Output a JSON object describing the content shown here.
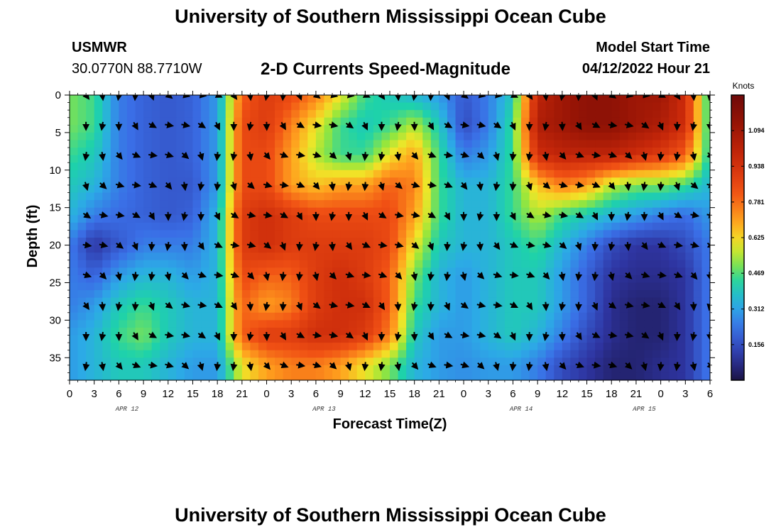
{
  "header": {
    "title": "University of Southern Mississippi Ocean Cube",
    "station": "USMWR",
    "coords": "30.0770N  88.7710W",
    "subtitle": "2-D Currents Speed-Magnitude",
    "model_start_label": "Model Start Time",
    "model_start_value": "04/12/2022 Hour 21",
    "second_title": "University of Southern Mississippi Ocean Cube"
  },
  "chart_data": {
    "type": "heatmap",
    "xlabel": "Forecast Time(Z)",
    "ylabel": "Depth (ft)",
    "x_tick_labels": [
      "0",
      "3",
      "6",
      "9",
      "12",
      "15",
      "18",
      "21",
      "0",
      "3",
      "6",
      "9",
      "12",
      "15",
      "18",
      "21",
      "0",
      "3",
      "6",
      "9",
      "12",
      "15",
      "18",
      "21",
      "0",
      "3",
      "6"
    ],
    "date_labels": [
      {
        "text": "APR 12",
        "hour": 7
      },
      {
        "text": "APR 13",
        "hour": 31
      },
      {
        "text": "APR 14",
        "hour": 55
      },
      {
        "text": "APR 15",
        "hour": 70
      }
    ],
    "hours_range": [
      0,
      78
    ],
    "y_ticks": [
      0,
      5,
      10,
      15,
      20,
      25,
      30,
      35
    ],
    "ylim": [
      0,
      38
    ],
    "colorbar": {
      "unit": "Knots",
      "ticks": [
        "1.094",
        "0.938",
        "0.781",
        "0.625",
        "0.469",
        "0.312",
        "0.156"
      ],
      "tick_values": [
        1.094,
        0.938,
        0.781,
        0.625,
        0.469,
        0.312,
        0.156
      ],
      "range": [
        0,
        1.25
      ]
    },
    "grid_hours": [
      0,
      3,
      6,
      9,
      12,
      15,
      18,
      21,
      24,
      27,
      30,
      33,
      36,
      39,
      42,
      45,
      48,
      51,
      54,
      57,
      60,
      63,
      66,
      69,
      72,
      75,
      78
    ],
    "grid_depths": [
      0,
      4,
      8,
      12,
      16,
      20,
      24,
      28,
      32,
      36
    ],
    "speed": [
      [
        0.5,
        0.45,
        0.25,
        0.2,
        0.18,
        0.2,
        0.3,
        0.8,
        0.9,
        0.85,
        0.75,
        0.6,
        0.45,
        0.4,
        0.35,
        0.3,
        0.18,
        0.25,
        0.4,
        1.0,
        1.1,
        1.15,
        1.15,
        1.1,
        1.1,
        0.95,
        0.4
      ],
      [
        0.5,
        0.45,
        0.25,
        0.2,
        0.18,
        0.2,
        0.3,
        0.85,
        0.9,
        0.75,
        0.6,
        0.45,
        0.4,
        0.45,
        0.55,
        0.4,
        0.15,
        0.25,
        0.45,
        1.05,
        1.1,
        1.15,
        1.15,
        1.1,
        1.05,
        0.95,
        0.4
      ],
      [
        0.45,
        0.4,
        0.25,
        0.2,
        0.18,
        0.2,
        0.3,
        0.85,
        0.85,
        0.7,
        0.55,
        0.45,
        0.45,
        0.6,
        0.7,
        0.45,
        0.25,
        0.3,
        0.45,
        0.95,
        1.0,
        1.0,
        1.0,
        0.95,
        0.9,
        0.8,
        0.4
      ],
      [
        0.4,
        0.35,
        0.25,
        0.2,
        0.18,
        0.18,
        0.3,
        0.85,
        0.85,
        0.7,
        0.65,
        0.7,
        0.7,
        0.8,
        0.75,
        0.45,
        0.35,
        0.35,
        0.45,
        0.65,
        0.75,
        0.7,
        0.55,
        0.5,
        0.5,
        0.45,
        0.35
      ],
      [
        0.35,
        0.25,
        0.22,
        0.2,
        0.18,
        0.2,
        0.35,
        0.9,
        0.95,
        0.9,
        0.85,
        0.85,
        0.85,
        0.85,
        0.7,
        0.45,
        0.35,
        0.35,
        0.45,
        0.55,
        0.45,
        0.4,
        0.35,
        0.3,
        0.25,
        0.22,
        0.3
      ],
      [
        0.25,
        0.1,
        0.18,
        0.25,
        0.25,
        0.25,
        0.35,
        0.9,
        0.95,
        0.9,
        0.9,
        0.9,
        0.9,
        0.85,
        0.6,
        0.4,
        0.35,
        0.35,
        0.4,
        0.45,
        0.35,
        0.25,
        0.15,
        0.1,
        0.1,
        0.15,
        0.25
      ],
      [
        0.25,
        0.2,
        0.3,
        0.35,
        0.35,
        0.3,
        0.35,
        0.85,
        0.8,
        0.8,
        0.9,
        0.95,
        0.9,
        0.8,
        0.5,
        0.35,
        0.3,
        0.35,
        0.4,
        0.4,
        0.3,
        0.2,
        0.1,
        0.08,
        0.08,
        0.1,
        0.25
      ],
      [
        0.25,
        0.3,
        0.4,
        0.45,
        0.4,
        0.35,
        0.35,
        0.8,
        0.7,
        0.75,
        0.9,
        0.95,
        0.95,
        0.8,
        0.45,
        0.35,
        0.3,
        0.35,
        0.4,
        0.4,
        0.3,
        0.2,
        0.08,
        0.05,
        0.05,
        0.1,
        0.25
      ],
      [
        0.3,
        0.35,
        0.45,
        0.5,
        0.4,
        0.35,
        0.35,
        0.8,
        0.9,
        0.9,
        0.95,
        0.95,
        0.9,
        0.75,
        0.4,
        0.3,
        0.3,
        0.35,
        0.4,
        0.35,
        0.25,
        0.15,
        0.08,
        0.05,
        0.05,
        0.1,
        0.25
      ],
      [
        0.3,
        0.35,
        0.4,
        0.4,
        0.35,
        0.3,
        0.3,
        0.6,
        0.7,
        0.75,
        0.75,
        0.7,
        0.6,
        0.5,
        0.35,
        0.3,
        0.28,
        0.3,
        0.3,
        0.25,
        0.15,
        0.1,
        0.05,
        0.05,
        0.08,
        0.1,
        0.25
      ]
    ],
    "vector_hours": [
      2,
      4,
      6,
      8,
      10,
      12,
      14,
      16,
      18,
      20,
      22,
      24,
      26,
      28,
      30,
      32,
      34,
      36,
      38,
      40,
      42,
      44,
      46,
      48,
      50,
      52,
      54,
      56,
      58,
      60,
      62,
      64,
      66,
      68,
      70,
      72,
      74,
      76,
      78
    ],
    "vector_depths": [
      0,
      4,
      8,
      12,
      16,
      20,
      24,
      28,
      32,
      36
    ]
  }
}
